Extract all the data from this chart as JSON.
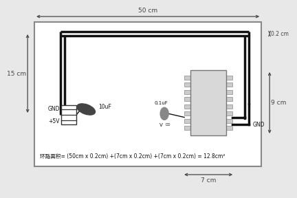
{
  "bg_color": "#e8e8e8",
  "board_color": "#ffffff",
  "trace_color": "#111111",
  "dim_color": "#444444",
  "text_color": "#111111",
  "dim_50cm_label": "50 cm",
  "dim_15cm_label": "15 cm",
  "dim_02cm_label": "0.2 cm",
  "dim_9cm_label": "9 cm",
  "dim_7cm_label": "7 cm",
  "formula_text": "环路面积= (50cm x 0.2cm) +(7cm x 0.2cm) +(7cm x 0.2cm) = 12.8cm²",
  "gnd_left_label": "GND",
  "plus5v_label": "+5V",
  "cap_10uf_label": "10uF",
  "cap_01uf_label": "0.1uF",
  "vdd_label": "V",
  "vdd_sub": "DD",
  "gnd_right_label": "GND"
}
